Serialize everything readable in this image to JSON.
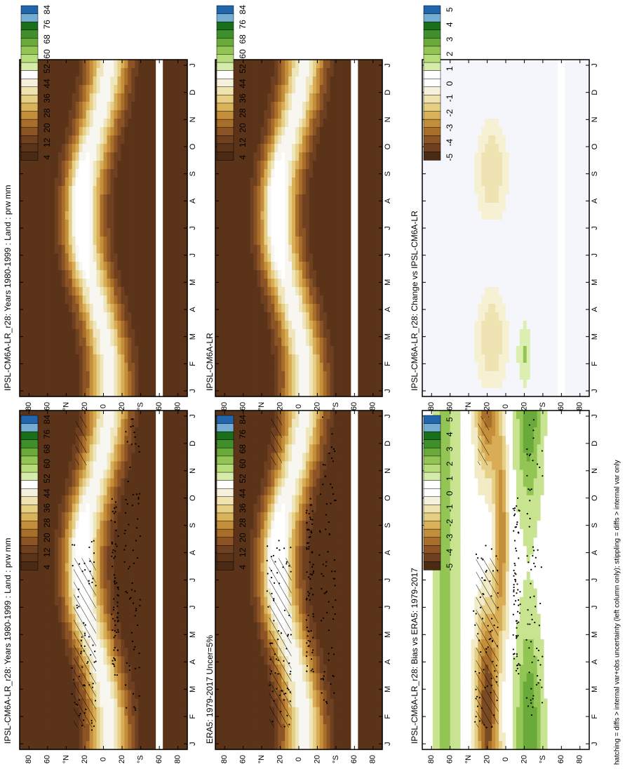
{
  "figure": {
    "footnote": "hatching = diffs > internal var+obs uncertainty (left column only); stippling = diffs > internal var only"
  },
  "chart_data": [
    {
      "type": "heatmap",
      "title": "IPSL-CM6A-LR_r28: Years 1980-1999 : Land : prw mm",
      "months": [
        "J",
        "F",
        "M",
        "A",
        "M",
        "J",
        "J",
        "A",
        "S",
        "O",
        "N",
        "D",
        "J"
      ],
      "lat_ticks": [
        "80",
        "60",
        "°N",
        "20",
        "0",
        "20",
        "°S",
        "60",
        "80"
      ],
      "colorbar": [
        "84",
        "76",
        "68",
        "60",
        "52",
        "44",
        "36",
        "28",
        "20",
        "12",
        "4"
      ],
      "field": "clim",
      "hatched": true,
      "stippled": true
    },
    {
      "type": "heatmap",
      "title": "IPSL-CM6A-LR_r28: Years 1980-1999 : Land : prw mm",
      "months": [
        "J",
        "F",
        "M",
        "A",
        "M",
        "J",
        "J",
        "A",
        "S",
        "O",
        "N",
        "D",
        "J"
      ],
      "lat_ticks": [
        "80",
        "60",
        "°N",
        "20",
        "0",
        "20",
        "°S",
        "60",
        "80"
      ],
      "colorbar": [
        "84",
        "76",
        "68",
        "60",
        "52",
        "44",
        "36",
        "28",
        "20",
        "12",
        "4"
      ],
      "field": "clim",
      "hatched": false,
      "stippled": false
    },
    {
      "type": "heatmap",
      "title": "ERA5: 1979-2017 Uncer=5%",
      "months": [
        "J",
        "F",
        "M",
        "A",
        "M",
        "J",
        "J",
        "A",
        "S",
        "O",
        "N",
        "D",
        "J"
      ],
      "lat_ticks": [
        "80",
        "60",
        "°N",
        "20",
        "0",
        "20",
        "°S",
        "60",
        "80"
      ],
      "colorbar": [
        "84",
        "76",
        "68",
        "60",
        "52",
        "44",
        "36",
        "28",
        "20",
        "12",
        "4"
      ],
      "field": "clim",
      "hatched": true,
      "stippled": true
    },
    {
      "type": "heatmap",
      "title": "IPSL-CM6A-LR",
      "months": [
        "J",
        "F",
        "M",
        "A",
        "M",
        "J",
        "J",
        "A",
        "S",
        "O",
        "N",
        "D",
        "J"
      ],
      "lat_ticks": [
        "80",
        "60",
        "°N",
        "20",
        "0",
        "20",
        "°S",
        "60",
        "80"
      ],
      "colorbar": [
        "84",
        "76",
        "68",
        "60",
        "52",
        "44",
        "36",
        "28",
        "20",
        "12",
        "4"
      ],
      "field": "clim",
      "hatched": false,
      "stippled": false
    },
    {
      "type": "heatmap",
      "title": "IPSL-CM6A-LR_r28: Bias vs ERA5: 1979-2017",
      "months": [
        "J",
        "F",
        "M",
        "A",
        "M",
        "J",
        "J",
        "A",
        "S",
        "O",
        "N",
        "D",
        "J"
      ],
      "lat_ticks": [
        "80",
        "60",
        "°N",
        "20",
        "0",
        "20",
        "°S",
        "60",
        "80"
      ],
      "colorbar": [
        "5",
        "4",
        "3",
        "2",
        "1",
        "0",
        "-1",
        "-2",
        "-3",
        "-4",
        "-5"
      ],
      "field": "bias",
      "hatched": true,
      "stippled": true
    },
    {
      "type": "heatmap",
      "title": "IPSL-CM6A-LR_r28: Change vs IPSL-CM6A-LR",
      "months": [
        "J",
        "F",
        "M",
        "A",
        "M",
        "J",
        "J",
        "A",
        "S",
        "O",
        "N",
        "D",
        "J"
      ],
      "lat_ticks": [
        "80",
        "60",
        "°N",
        "20",
        "0",
        "20",
        "°S",
        "60",
        "80"
      ],
      "colorbar": [
        "5",
        "4",
        "3",
        "2",
        "1",
        "0",
        "-1",
        "-2",
        "-3",
        "-4",
        "-5"
      ],
      "field": "change",
      "hatched": false,
      "stippled": false
    }
  ]
}
